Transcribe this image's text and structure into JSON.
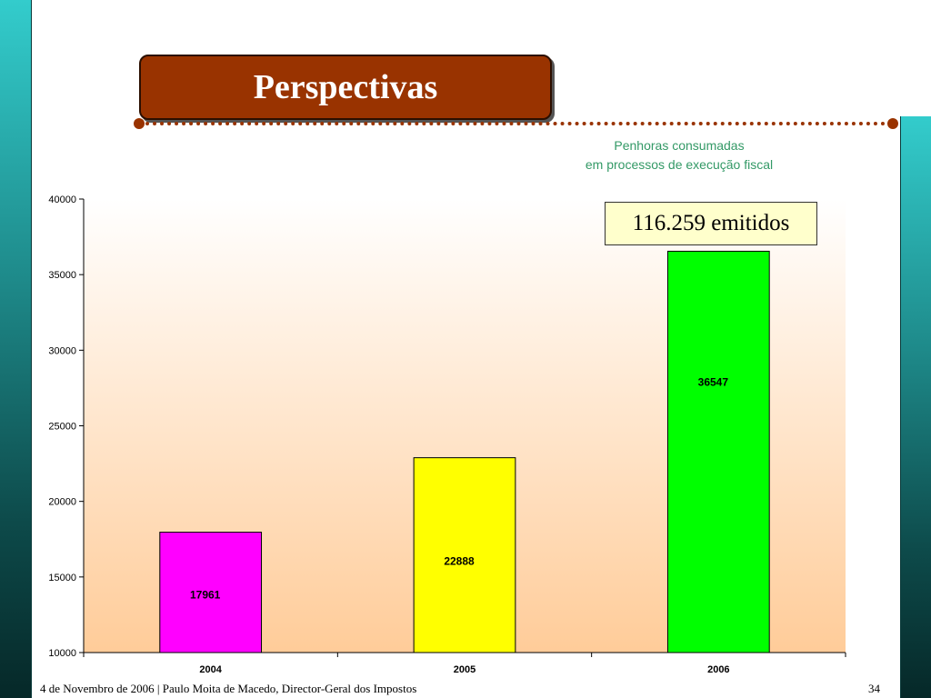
{
  "slide": {
    "title": "Perspectivas",
    "callout": "116.259 emitidos",
    "footer": "4 de Novembro de 2006 | Paulo Moita de Macedo, Director-Geral dos Impostos",
    "page_number": "34"
  },
  "colors": {
    "accent": "#993300",
    "side_bar": "#33cccc",
    "chart_title": "#339966",
    "callout_bg": "#ffffcc"
  },
  "chart_data": {
    "type": "bar",
    "title": [
      "Penhoras consumadas",
      "em processos de execução fiscal"
    ],
    "categories": [
      "2004",
      "2005",
      "2006"
    ],
    "values": [
      17961,
      22888,
      36547
    ],
    "data_labels": [
      "17961",
      "22888",
      "36547"
    ],
    "bar_colors": [
      "#ff00ff",
      "#ffff00",
      "#00ff00"
    ],
    "ylim": [
      10000,
      40000
    ],
    "yticks": [
      10000,
      15000,
      20000,
      25000,
      30000,
      35000,
      40000
    ],
    "ytick_labels": [
      "10000",
      "15000",
      "20000",
      "25000",
      "30000",
      "35000",
      "40000"
    ],
    "xlabel": "",
    "ylabel": "",
    "grid": false,
    "legend": "none"
  }
}
